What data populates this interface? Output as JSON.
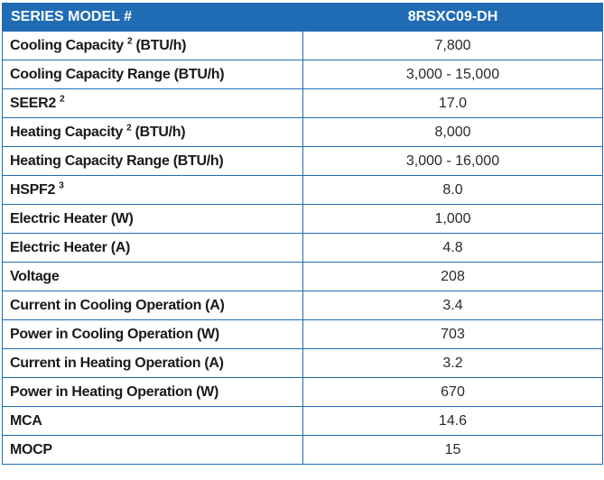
{
  "table": {
    "header": {
      "label": "SERIES MODEL #",
      "value": "8RSXC09-DH"
    },
    "rows": [
      {
        "label": "Cooling Capacity",
        "sup": "2",
        "suffix": "(BTU/h)",
        "value": "7,800"
      },
      {
        "label": "Cooling Capacity Range (BTU/h)",
        "sup": "",
        "suffix": "",
        "value": "3,000 - 15,000"
      },
      {
        "label": "SEER2",
        "sup": "2",
        "suffix": "",
        "value": "17.0"
      },
      {
        "label": "Heating Capacity",
        "sup": "2",
        "suffix": "(BTU/h)",
        "value": "8,000"
      },
      {
        "label": "Heating Capacity Range (BTU/h)",
        "sup": "",
        "suffix": "",
        "value": "3,000 - 16,000"
      },
      {
        "label": "HSPF2",
        "sup": "3",
        "suffix": "",
        "value": "8.0"
      },
      {
        "label": "Electric Heater (W)",
        "sup": "",
        "suffix": "",
        "value": "1,000"
      },
      {
        "label": "Electric Heater (A)",
        "sup": "",
        "suffix": "",
        "value": "4.8"
      },
      {
        "label": "Voltage",
        "sup": "",
        "suffix": "",
        "value": "208"
      },
      {
        "label": "Current in Cooling Operation (A)",
        "sup": "",
        "suffix": "",
        "value": "3.4"
      },
      {
        "label": "Power in Cooling Operation (W)",
        "sup": "",
        "suffix": "",
        "value": "703"
      },
      {
        "label": "Current in Heating Operation (A)",
        "sup": "",
        "suffix": "",
        "value": "3.2"
      },
      {
        "label": "Power in Heating Operation (W)",
        "sup": "",
        "suffix": "",
        "value": "670"
      },
      {
        "label": "MCA",
        "sup": "",
        "suffix": "",
        "value": "14.6"
      },
      {
        "label": "MOCP",
        "sup": "",
        "suffix": "",
        "value": "15"
      }
    ]
  },
  "colors": {
    "header_bg": "#1f6cb5",
    "border": "#1f6cb5",
    "header_text": "#ffffff"
  }
}
